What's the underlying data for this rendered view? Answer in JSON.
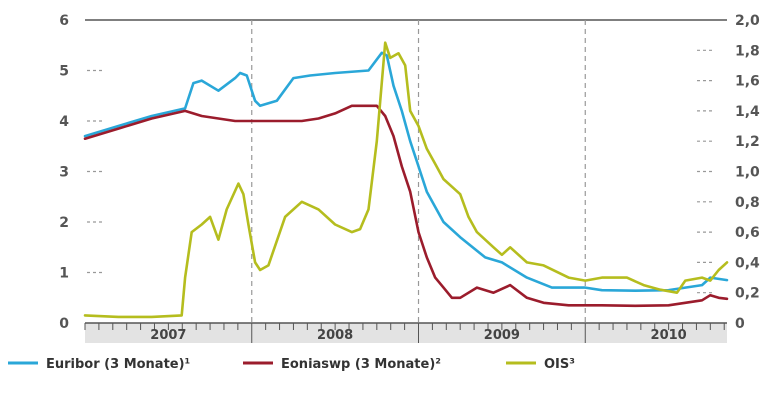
{
  "colors": {
    "euribor": "#2aa7d8",
    "eonia": "#9b1c2c",
    "ois": "#b5bd1e",
    "grid": "#999999",
    "axis": "#555555",
    "footer": "#e3e3e3"
  },
  "chart_data": {
    "type": "line",
    "title": "",
    "xlabel": "",
    "ylabel_left": "",
    "ylabel_right": "",
    "x_axis": {
      "start": 2006.5,
      "end": 2010.35,
      "year_labels": [
        {
          "label": "2007",
          "center": 2007.0
        },
        {
          "label": "2008",
          "center": 2008.0
        },
        {
          "label": "2009",
          "center": 2009.0
        },
        {
          "label": "2010",
          "center": 2010.0
        }
      ],
      "year_dividers": [
        2007.5,
        2008.5,
        2009.5
      ]
    },
    "y_left": {
      "ylim": [
        0,
        6
      ],
      "ticks": [
        0,
        1,
        2,
        3,
        4,
        5,
        6
      ],
      "tick_labels": [
        "0",
        "1",
        "2",
        "3",
        "4",
        "5",
        "6"
      ]
    },
    "y_right": {
      "ylim": [
        0,
        2.0
      ],
      "ticks": [
        0,
        0.2,
        0.4,
        0.6,
        0.8,
        1.0,
        1.2,
        1.4,
        1.6,
        1.8,
        2.0
      ],
      "tick_labels": [
        "0",
        "0,2",
        "0,4",
        "0,6",
        "0,8",
        "1,0",
        "1,2",
        "1,4",
        "1,6",
        "1,8",
        "2,0"
      ]
    },
    "grid": "horizontal dashed",
    "legend_position": "bottom",
    "series": [
      {
        "name": "Euribor (3 Monate)¹",
        "axis": "left",
        "x": [
          2006.5,
          2006.7,
          2006.9,
          2007.1,
          2007.15,
          2007.2,
          2007.3,
          2007.4,
          2007.43,
          2007.47,
          2007.52,
          2007.55,
          2007.65,
          2007.75,
          2007.85,
          2008.0,
          2008.2,
          2008.28,
          2008.31,
          2008.35,
          2008.4,
          2008.45,
          2008.5,
          2008.55,
          2008.65,
          2008.75,
          2008.9,
          2009.0,
          2009.15,
          2009.3,
          2009.5,
          2009.6,
          2009.8,
          2010.0,
          2010.1,
          2010.2,
          2010.25,
          2010.35
        ],
        "y": [
          3.7,
          3.9,
          4.1,
          4.25,
          4.75,
          4.8,
          4.6,
          4.85,
          4.95,
          4.9,
          4.4,
          4.3,
          4.4,
          4.85,
          4.9,
          4.95,
          5.0,
          5.35,
          5.3,
          4.7,
          4.2,
          3.6,
          3.1,
          2.6,
          2.0,
          1.7,
          1.3,
          1.2,
          0.9,
          0.7,
          0.7,
          0.65,
          0.64,
          0.65,
          0.7,
          0.75,
          0.9,
          0.85
        ]
      },
      {
        "name": "Eoniaswp (3 Monate)²",
        "axis": "left",
        "x": [
          2006.5,
          2006.7,
          2006.9,
          2007.1,
          2007.2,
          2007.4,
          2007.6,
          2007.8,
          2007.9,
          2008.0,
          2008.1,
          2008.25,
          2008.3,
          2008.35,
          2008.4,
          2008.45,
          2008.5,
          2008.55,
          2008.6,
          2008.65,
          2008.7,
          2008.75,
          2008.85,
          2008.95,
          2009.05,
          2009.15,
          2009.25,
          2009.4,
          2009.6,
          2009.8,
          2010.0,
          2010.1,
          2010.2,
          2010.25,
          2010.3,
          2010.35
        ],
        "y": [
          3.65,
          3.85,
          4.05,
          4.2,
          4.1,
          4.0,
          4.0,
          4.0,
          4.05,
          4.15,
          4.3,
          4.3,
          4.1,
          3.7,
          3.1,
          2.6,
          1.8,
          1.3,
          0.9,
          0.7,
          0.5,
          0.5,
          0.7,
          0.6,
          0.75,
          0.5,
          0.4,
          0.35,
          0.35,
          0.34,
          0.35,
          0.4,
          0.45,
          0.55,
          0.5,
          0.48
        ]
      },
      {
        "name": "OIS³",
        "axis": "right",
        "x": [
          2006.5,
          2006.7,
          2006.9,
          2007.08,
          2007.1,
          2007.14,
          2007.2,
          2007.25,
          2007.3,
          2007.35,
          2007.42,
          2007.45,
          2007.48,
          2007.52,
          2007.55,
          2007.6,
          2007.7,
          2007.8,
          2007.9,
          2008.0,
          2008.1,
          2008.15,
          2008.2,
          2008.25,
          2008.3,
          2008.33,
          2008.38,
          2008.42,
          2008.45,
          2008.5,
          2008.55,
          2008.6,
          2008.65,
          2008.7,
          2008.75,
          2008.8,
          2008.85,
          2008.9,
          2008.95,
          2009.0,
          2009.05,
          2009.15,
          2009.25,
          2009.4,
          2009.5,
          2009.6,
          2009.75,
          2009.85,
          2009.95,
          2010.05,
          2010.1,
          2010.2,
          2010.25,
          2010.3,
          2010.35
        ],
        "y": [
          0.05,
          0.04,
          0.04,
          0.05,
          0.3,
          0.6,
          0.65,
          0.7,
          0.55,
          0.75,
          0.92,
          0.85,
          0.65,
          0.4,
          0.35,
          0.38,
          0.7,
          0.8,
          0.75,
          0.65,
          0.6,
          0.62,
          0.75,
          1.2,
          1.85,
          1.75,
          1.78,
          1.7,
          1.4,
          1.3,
          1.15,
          1.05,
          0.95,
          0.9,
          0.85,
          0.7,
          0.6,
          0.55,
          0.5,
          0.45,
          0.5,
          0.4,
          0.38,
          0.3,
          0.28,
          0.3,
          0.3,
          0.25,
          0.22,
          0.2,
          0.28,
          0.3,
          0.28,
          0.35,
          0.4
        ]
      }
    ]
  }
}
